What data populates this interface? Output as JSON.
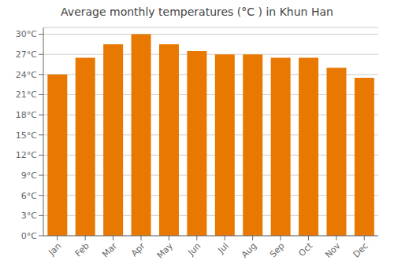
{
  "chart_data": {
    "type": "bar",
    "title": "Average monthly temperatures (°C ) in Khun Han",
    "categories": [
      "Jan",
      "Feb",
      "Mar",
      "Apr",
      "May",
      "Jun",
      "Jul",
      "Aug",
      "Sep",
      "Oct",
      "Nov",
      "Dec"
    ],
    "values": [
      24.0,
      26.5,
      28.5,
      30.0,
      28.5,
      27.5,
      27.0,
      27.0,
      26.5,
      26.5,
      25.0,
      23.5
    ],
    "color": "#E87800",
    "ylim": [
      0,
      31
    ],
    "yticks": [
      {
        "value": 0,
        "label": "0°C"
      },
      {
        "value": 3,
        "label": "3°C"
      },
      {
        "value": 6,
        "label": "6°C"
      },
      {
        "value": 9,
        "label": "9°C"
      },
      {
        "value": 12,
        "label": "12°C"
      },
      {
        "value": 15,
        "label": "15°C"
      },
      {
        "value": 18,
        "label": "18°C"
      },
      {
        "value": 21,
        "label": "21°C"
      },
      {
        "value": 24,
        "label": "24°C"
      },
      {
        "value": 27,
        "label": "27°C"
      },
      {
        "value": 30,
        "label": "30°C"
      }
    ],
    "grid": true
  }
}
